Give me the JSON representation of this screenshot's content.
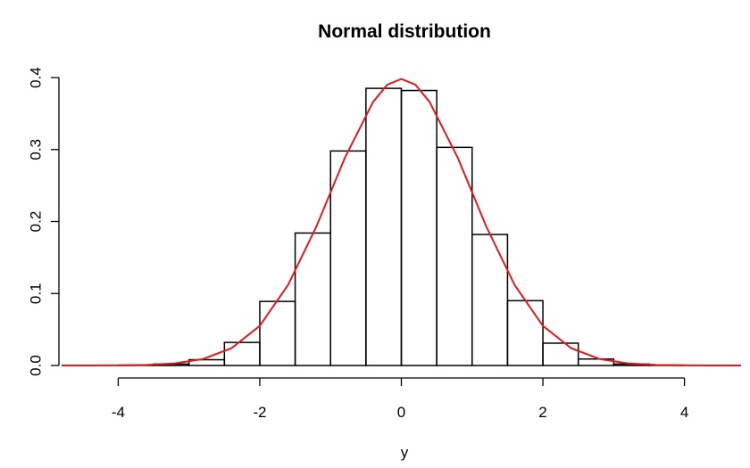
{
  "chart_data": {
    "type": "bar",
    "title": "Normal distribution",
    "xlabel": "y",
    "ylabel": "",
    "xlim": [
      -4.8,
      4.8
    ],
    "ylim": [
      0,
      0.4
    ],
    "x_ticks": [
      -4,
      -2,
      0,
      2,
      4
    ],
    "x_tick_labels": [
      "-4",
      "-2",
      "0",
      "2",
      "4"
    ],
    "y_ticks": [
      0,
      0.1,
      0.2,
      0.3,
      0.4
    ],
    "y_tick_labels": [
      "0.0",
      "0.1",
      "0.2",
      "0.3",
      "0.4"
    ],
    "grid": false,
    "bins": {
      "breaks": [
        -4,
        -3.5,
        -3,
        -2.5,
        -2,
        -1.5,
        -1,
        -0.5,
        0,
        0.5,
        1,
        1.5,
        2,
        2.5,
        3,
        3.5,
        4
      ],
      "density": [
        0.0005,
        0.002,
        0.008,
        0.032,
        0.089,
        0.184,
        0.298,
        0.385,
        0.382,
        0.303,
        0.182,
        0.09,
        0.031,
        0.009,
        0.002,
        0.0005
      ]
    },
    "series": [
      {
        "type": "line",
        "color": "#e31a1c",
        "x": [
          -4.8,
          -4.4,
          -4.0,
          -3.6,
          -3.2,
          -2.8,
          -2.4,
          -2.0,
          -1.6,
          -1.2,
          -0.8,
          -0.4,
          -0.2,
          0.0,
          0.2,
          0.4,
          0.8,
          1.2,
          1.6,
          2.0,
          2.4,
          2.8,
          3.2,
          3.6,
          4.0,
          4.4,
          4.8
        ],
        "y": [
          0.0,
          0.0,
          0.0002,
          0.0008,
          0.003,
          0.009,
          0.024,
          0.055,
          0.112,
          0.193,
          0.288,
          0.366,
          0.39,
          0.398,
          0.39,
          0.366,
          0.288,
          0.193,
          0.112,
          0.055,
          0.024,
          0.009,
          0.003,
          0.0008,
          0.0002,
          0.0,
          0.0
        ]
      }
    ]
  }
}
